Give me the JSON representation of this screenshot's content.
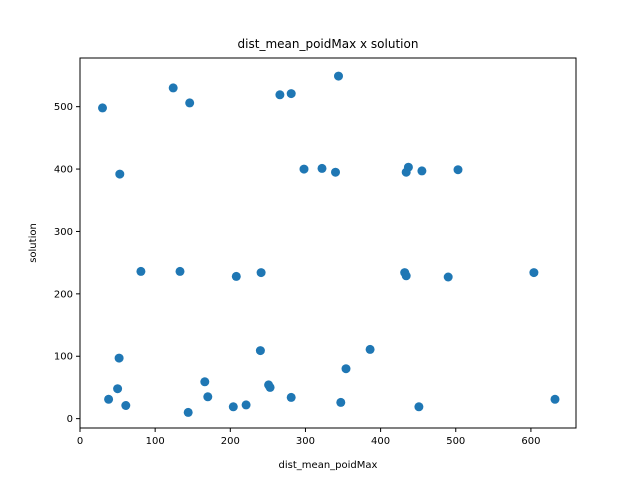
{
  "chart_data": {
    "type": "scatter",
    "title": "dist_mean_poidMax x solution",
    "xlabel": "dist_mean_poidMax",
    "ylabel": "solution",
    "xlim": [
      0,
      660
    ],
    "ylim": [
      -15,
      578
    ],
    "xticks": [
      0,
      100,
      200,
      300,
      400,
      500,
      600
    ],
    "yticks": [
      0,
      100,
      200,
      300,
      400,
      500
    ],
    "marker_color": "#1f77b4",
    "grid": false,
    "x": [
      30,
      124,
      146,
      266,
      281,
      344,
      53,
      298,
      322,
      340,
      434,
      437,
      455,
      503,
      81,
      133,
      208,
      241,
      432,
      434,
      490,
      604,
      52,
      240,
      386,
      354,
      50,
      38,
      61,
      166,
      170,
      251,
      253,
      281,
      347,
      144,
      204,
      221,
      451,
      632
    ],
    "y": [
      498,
      530,
      506,
      519,
      521,
      549,
      392,
      400,
      401,
      395,
      395,
      403,
      397,
      399,
      236,
      236,
      228,
      234,
      234,
      229,
      227,
      234,
      97,
      109,
      111,
      80,
      48,
      31,
      21,
      59,
      35,
      54,
      50,
      34,
      26,
      10,
      19,
      22,
      19,
      31
    ]
  }
}
